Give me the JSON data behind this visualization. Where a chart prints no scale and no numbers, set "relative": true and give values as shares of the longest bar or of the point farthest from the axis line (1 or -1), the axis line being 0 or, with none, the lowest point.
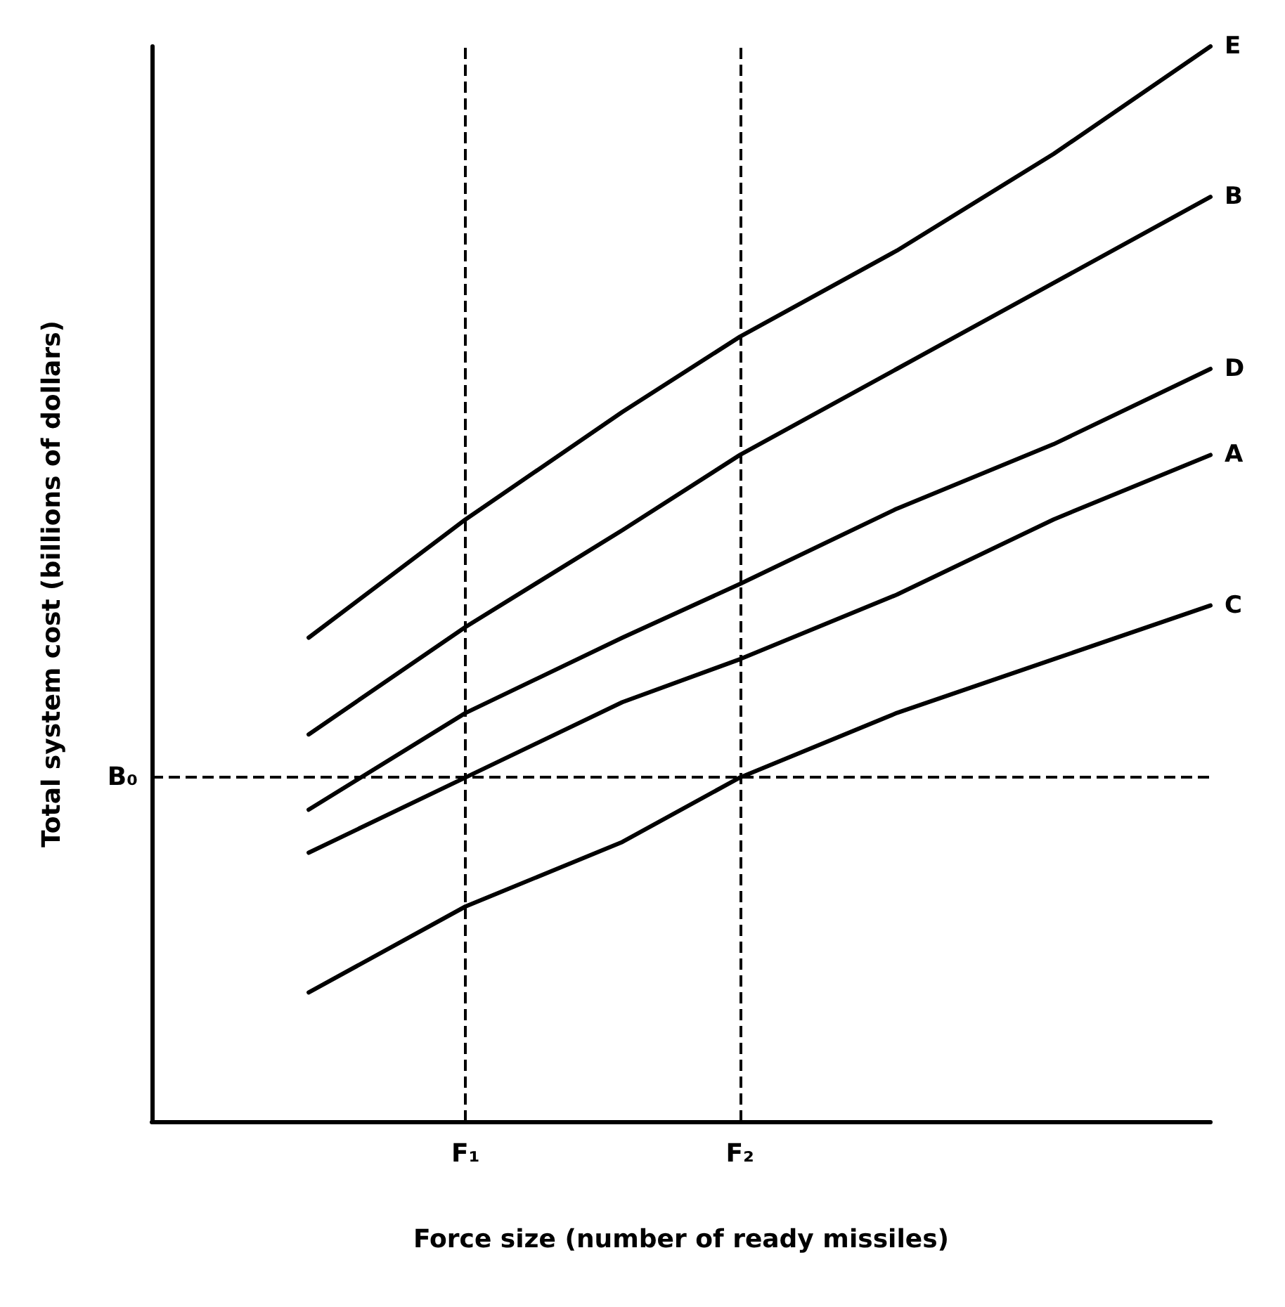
{
  "chart_data": {
    "type": "line",
    "relative": true,
    "xlabel": "Force size (number of ready missiles)",
    "ylabel": "Total system cost (billions of dollars)",
    "marker": "none",
    "line_style": "solid",
    "categories": [
      null,
      null,
      null,
      null,
      null,
      null,
      null,
      null,
      "F₁",
      null,
      null,
      null,
      null,
      null,
      null,
      "F₂",
      null,
      null,
      null,
      null,
      null,
      null,
      null,
      null,
      null,
      null,
      null,
      null
    ],
    "series": [
      {
        "name": "E",
        "color": "#000000",
        "values": [
          null,
          null,
          null,
          null,
          0.45,
          null,
          null,
          null,
          0.56,
          null,
          null,
          null,
          0.66,
          null,
          null,
          0.73,
          null,
          null,
          null,
          0.81,
          null,
          null,
          null,
          0.9,
          null,
          null,
          null,
          1
        ]
      },
      {
        "name": "B",
        "color": "#000000",
        "values": [
          null,
          null,
          null,
          null,
          0.36,
          null,
          null,
          null,
          0.46,
          null,
          null,
          null,
          0.55,
          null,
          null,
          0.62,
          null,
          null,
          null,
          0.7,
          null,
          null,
          null,
          0.78,
          null,
          null,
          null,
          0.86
        ]
      },
      {
        "name": "D",
        "color": "#000000",
        "values": [
          null,
          null,
          null,
          null,
          0.29,
          null,
          null,
          null,
          0.38,
          null,
          null,
          null,
          0.45,
          null,
          null,
          0.5,
          null,
          null,
          null,
          0.57,
          null,
          null,
          null,
          0.63,
          null,
          null,
          null,
          0.7
        ]
      },
      {
        "name": "A",
        "color": "#000000",
        "values": [
          null,
          null,
          null,
          null,
          0.25,
          null,
          null,
          null,
          0.32,
          null,
          null,
          null,
          0.39,
          null,
          null,
          0.43,
          null,
          null,
          null,
          0.49,
          null,
          null,
          null,
          0.56,
          null,
          null,
          null,
          0.62
        ]
      },
      {
        "name": "C",
        "color": "#000000",
        "values": [
          null,
          null,
          null,
          null,
          0.12,
          null,
          null,
          null,
          0.2,
          null,
          null,
          null,
          0.26,
          null,
          null,
          0.32,
          null,
          null,
          null,
          0.38,
          null,
          null,
          null,
          0.43,
          null,
          null,
          null,
          0.48
        ]
      }
    ],
    "ref_lines": [
      {
        "axis": "y",
        "value": 0.32,
        "label": "B₀",
        "color": "#000000",
        "line_style": "dashed"
      },
      {
        "axis": "x",
        "value": "F₁",
        "color": "#000000",
        "line_style": "dashed"
      },
      {
        "axis": "x",
        "value": "F₂",
        "color": "#000000",
        "line_style": "dashed"
      }
    ]
  }
}
